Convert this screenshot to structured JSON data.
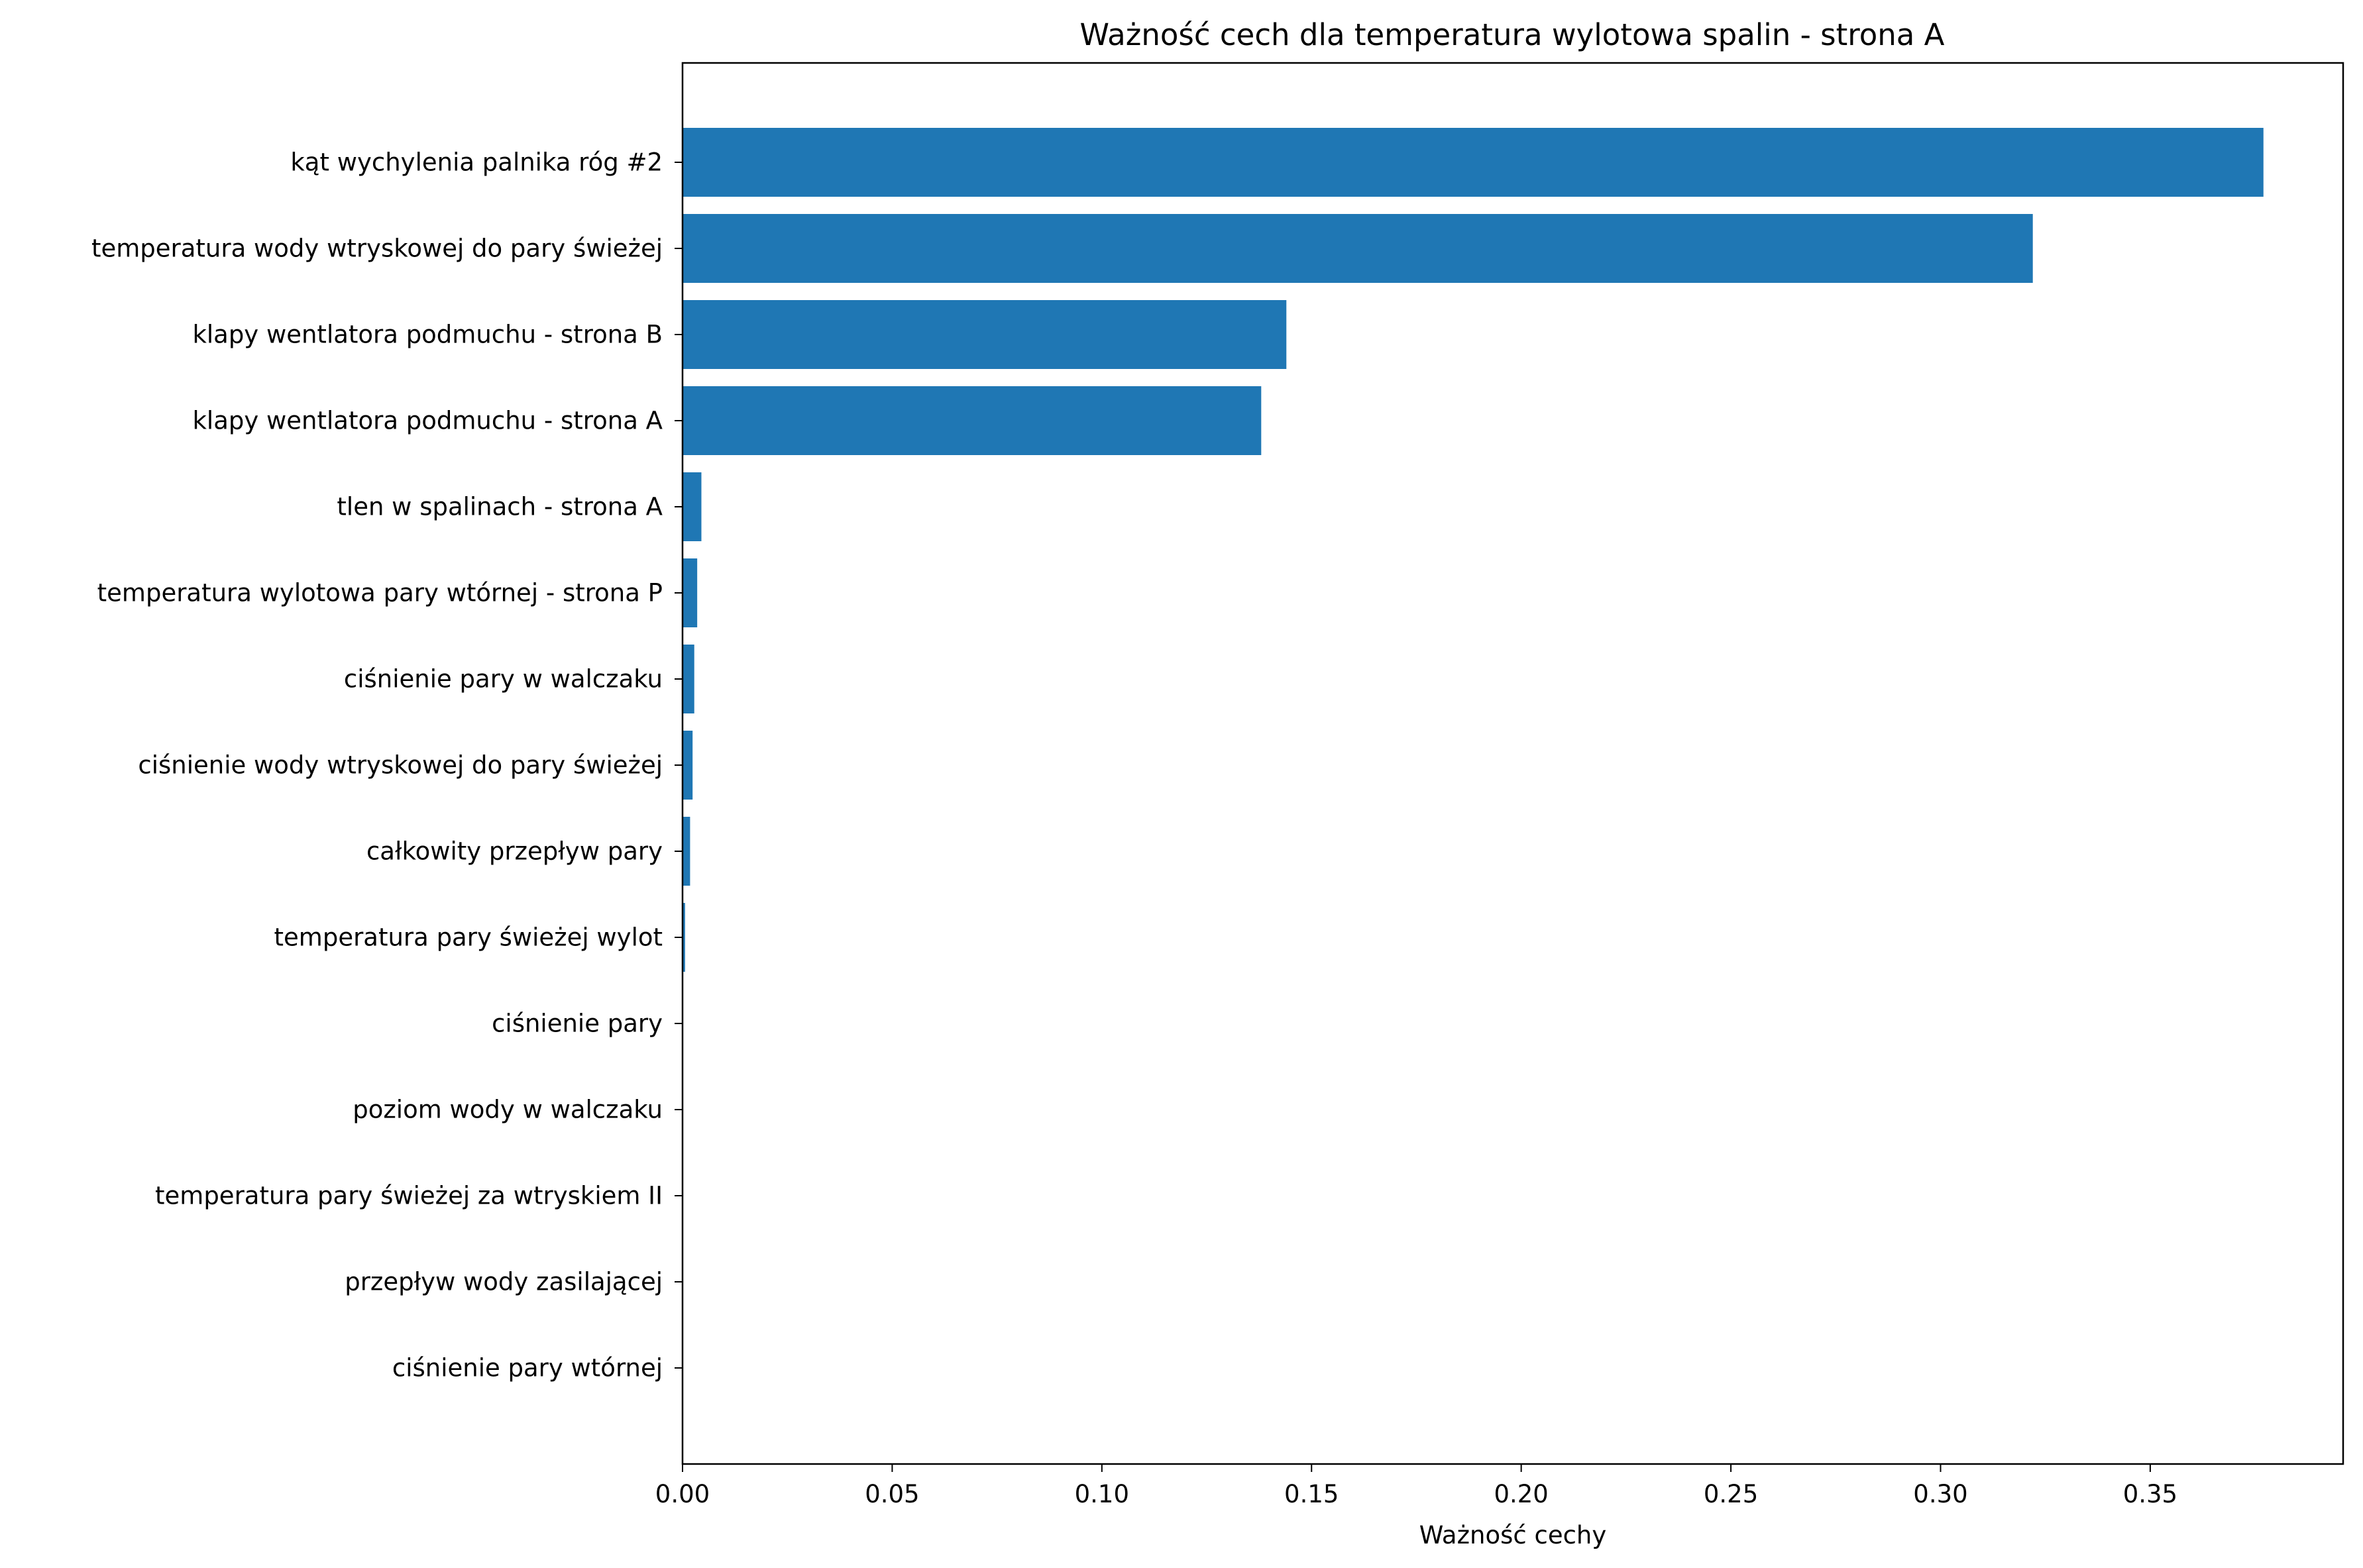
{
  "chart_data": {
    "type": "bar",
    "orientation": "horizontal",
    "title": "Ważność cech dla temperatura wylotowa spalin - strona A",
    "xlabel": "Ważność cechy",
    "ylabel": "",
    "categories": [
      "kąt wychylenia palnika róg #2",
      "temperatura wody wtryskowej do pary świeżej",
      "klapy wentlatora podmuchu - strona B",
      "klapy wentlatora podmuchu - strona A",
      "tlen w spalinach - strona A",
      "temperatura wylotowa pary wtórnej - strona P",
      "ciśnienie pary w walczaku",
      "ciśnienie wody wtryskowej do pary świeżej",
      "całkowity przepływ pary",
      "temperatura pary świeżej wylot",
      "ciśnienie pary",
      "poziom wody w walczaku",
      "temperatura pary świeżej za wtryskiem II",
      "przepływ wody zasilającej",
      "ciśnienie pary wtórnej"
    ],
    "values": [
      0.377,
      0.322,
      0.144,
      0.138,
      0.0045,
      0.0035,
      0.0028,
      0.0024,
      0.0018,
      0.0006,
      0.0,
      0.0,
      0.0,
      0.0,
      0.0
    ],
    "xlim": [
      0,
      0.396
    ],
    "xticks": [
      0.0,
      0.05,
      0.1,
      0.15,
      0.2,
      0.25,
      0.3,
      0.35
    ],
    "xtick_labels": [
      "0.00",
      "0.05",
      "0.10",
      "0.15",
      "0.20",
      "0.25",
      "0.30",
      "0.35"
    ],
    "bar_color": "#1f77b4",
    "grid": false,
    "legend": "none"
  }
}
